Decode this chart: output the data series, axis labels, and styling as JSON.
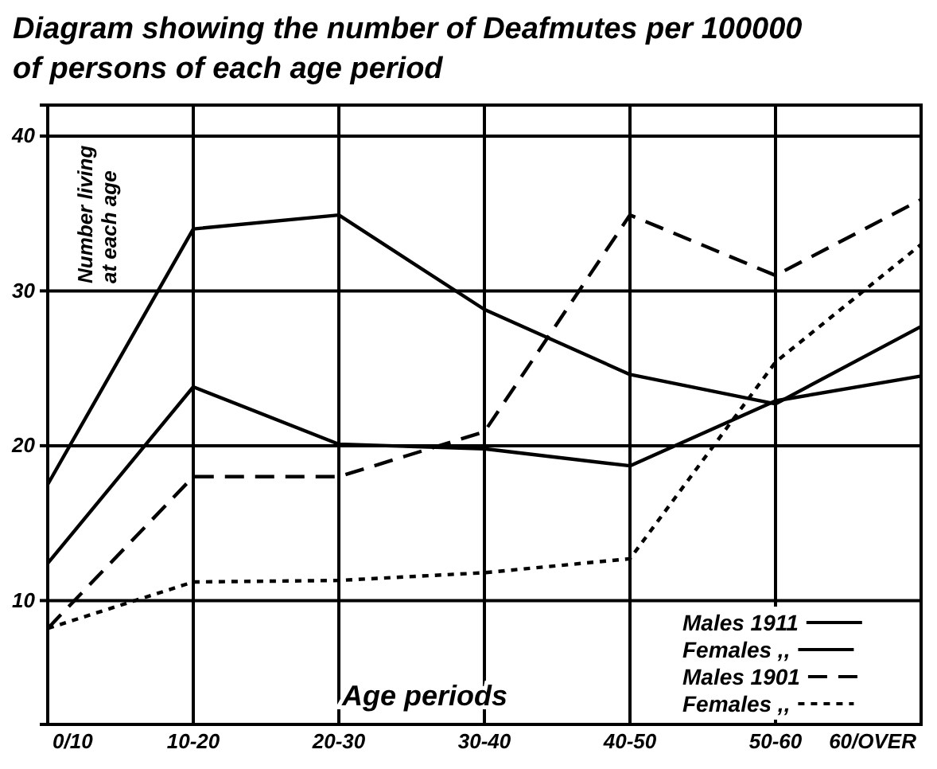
{
  "chart_data": {
    "type": "line",
    "title": "Diagram showing the number of Deafmutes per 100000 of persons of each age period",
    "xlabel": "Age periods",
    "ylabel": "Number living at each age",
    "categories": [
      "0/10",
      "10-20",
      "20-30",
      "30-40",
      "40-50",
      "50-60",
      "60/OVER"
    ],
    "ylim": [
      2,
      42
    ],
    "yticks": [
      10,
      20,
      30,
      40
    ],
    "grid": true,
    "legend": "bottom right",
    "marker": "none",
    "series": [
      {
        "name": "Males 1911",
        "color": "#000000",
        "line_style": "solid",
        "values": [
          17.5,
          34.0,
          34.9,
          28.8,
          24.6,
          22.7,
          27.7
        ]
      },
      {
        "name": "Females ,,",
        "color": "#000000",
        "line_style": "solid",
        "values": [
          12.4,
          23.8,
          20.1,
          19.8,
          18.7,
          22.9,
          24.5
        ]
      },
      {
        "name": "Males 1901",
        "color": "#000000",
        "line_style": "dashed",
        "values": [
          8.2,
          18.0,
          18.0,
          20.9,
          34.9,
          31.0,
          35.9
        ]
      },
      {
        "name": "Females ,,",
        "color": "#000000",
        "line_style": "dotted",
        "values": [
          8.2,
          11.2,
          11.3,
          11.8,
          12.7,
          25.4,
          33.0
        ]
      }
    ]
  }
}
